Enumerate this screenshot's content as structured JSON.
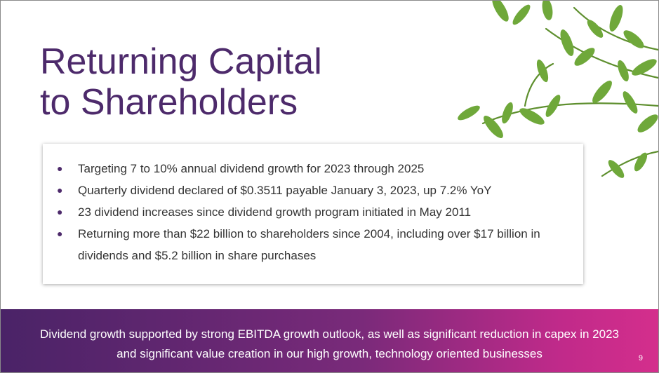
{
  "title": {
    "line1": "Returning Capital",
    "line2": "to Shareholders"
  },
  "bullets": [
    {
      "icon": "bullet-dot",
      "text": "Targeting 7 to 10% annual dividend growth for 2023 through 2025"
    },
    {
      "icon": "bullet-dot",
      "text": "Quarterly dividend declared of $0.3511 payable January 3, 2023, up 7.2% YoY"
    },
    {
      "icon": "bullet-dot",
      "text": "23 dividend increases since dividend growth program initiated in May 2011"
    },
    {
      "icon": "bullet-dot",
      "text": "Returning more than $22 billion to shareholders since 2004, including over $17 billion in dividends and $5.2 billion in share purchases"
    }
  ],
  "footer": {
    "text": "Dividend growth supported by strong EBITDA growth outlook, as well as significant reduction in capex in 2023 and significant value creation in our high growth, technology oriented businesses",
    "page_number": "9"
  },
  "colors": {
    "title": "#4d2a6b",
    "bullet": "#4d2a6b",
    "footer_start": "#4a2367",
    "footer_end": "#d42e8c",
    "leaf": "#6fa83a"
  },
  "decor": {
    "leaves_icon": "leaf-branch-icon"
  }
}
